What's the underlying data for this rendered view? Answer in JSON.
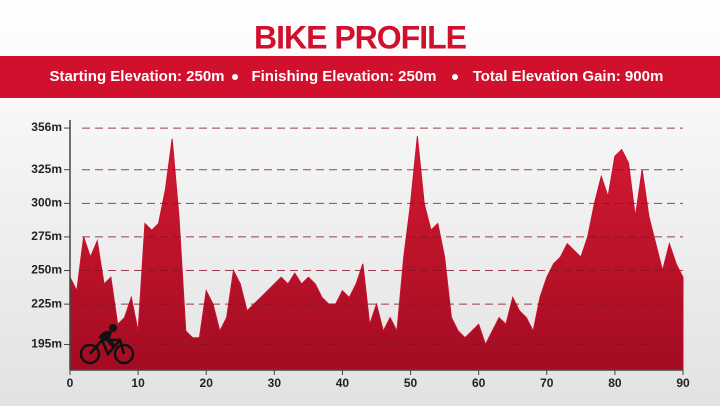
{
  "chart_data": {
    "type": "area",
    "title": "BIKE PROFILE",
    "stats": [
      "Starting Elevation: 250m",
      "Finishing Elevation: 250m",
      "Total Elevation Gain: 900m"
    ],
    "x": [
      0,
      1,
      2,
      3,
      4,
      5,
      6,
      7,
      8,
      9,
      10,
      11,
      12,
      13,
      14,
      15,
      16,
      17,
      18,
      19,
      20,
      21,
      22,
      23,
      24,
      25,
      26,
      27,
      28,
      29,
      30,
      31,
      32,
      33,
      34,
      35,
      36,
      37,
      38,
      39,
      40,
      41,
      42,
      43,
      44,
      45,
      46,
      47,
      48,
      49,
      50,
      51,
      52,
      53,
      54,
      55,
      56,
      57,
      58,
      59,
      60,
      61,
      62,
      63,
      64,
      65,
      66,
      67,
      68,
      69,
      70,
      71,
      72,
      73,
      74,
      75,
      76,
      77,
      78,
      79,
      80,
      81,
      82,
      83,
      84,
      85,
      86,
      87,
      88,
      89,
      90
    ],
    "values": [
      245,
      235,
      275,
      260,
      272,
      240,
      245,
      210,
      215,
      230,
      205,
      285,
      280,
      285,
      310,
      348,
      290,
      205,
      200,
      200,
      235,
      225,
      205,
      215,
      250,
      240,
      220,
      225,
      230,
      235,
      240,
      245,
      240,
      248,
      240,
      245,
      240,
      230,
      225,
      225,
      235,
      230,
      240,
      255,
      210,
      225,
      205,
      215,
      205,
      260,
      300,
      350,
      300,
      280,
      285,
      260,
      215,
      205,
      200,
      205,
      210,
      195,
      205,
      215,
      210,
      230,
      220,
      215,
      205,
      230,
      245,
      255,
      260,
      270,
      265,
      260,
      275,
      300,
      320,
      305,
      335,
      340,
      330,
      290,
      325,
      290,
      270,
      250,
      270,
      255,
      245
    ],
    "color": "#c8102e",
    "xlim": [
      0,
      90
    ],
    "xticks": [
      0,
      10,
      20,
      30,
      40,
      50,
      60,
      70,
      80,
      90
    ],
    "ylim": [
      176,
      362
    ],
    "yticks": [
      {
        "value": 195,
        "label": "195m"
      },
      {
        "value": 225,
        "label": "225m"
      },
      {
        "value": 250,
        "label": "250m"
      },
      {
        "value": 275,
        "label": "275m"
      },
      {
        "value": 300,
        "label": "300m"
      },
      {
        "value": 325,
        "label": "325m"
      },
      {
        "value": 356,
        "label": "356m"
      }
    ],
    "grid": true
  }
}
